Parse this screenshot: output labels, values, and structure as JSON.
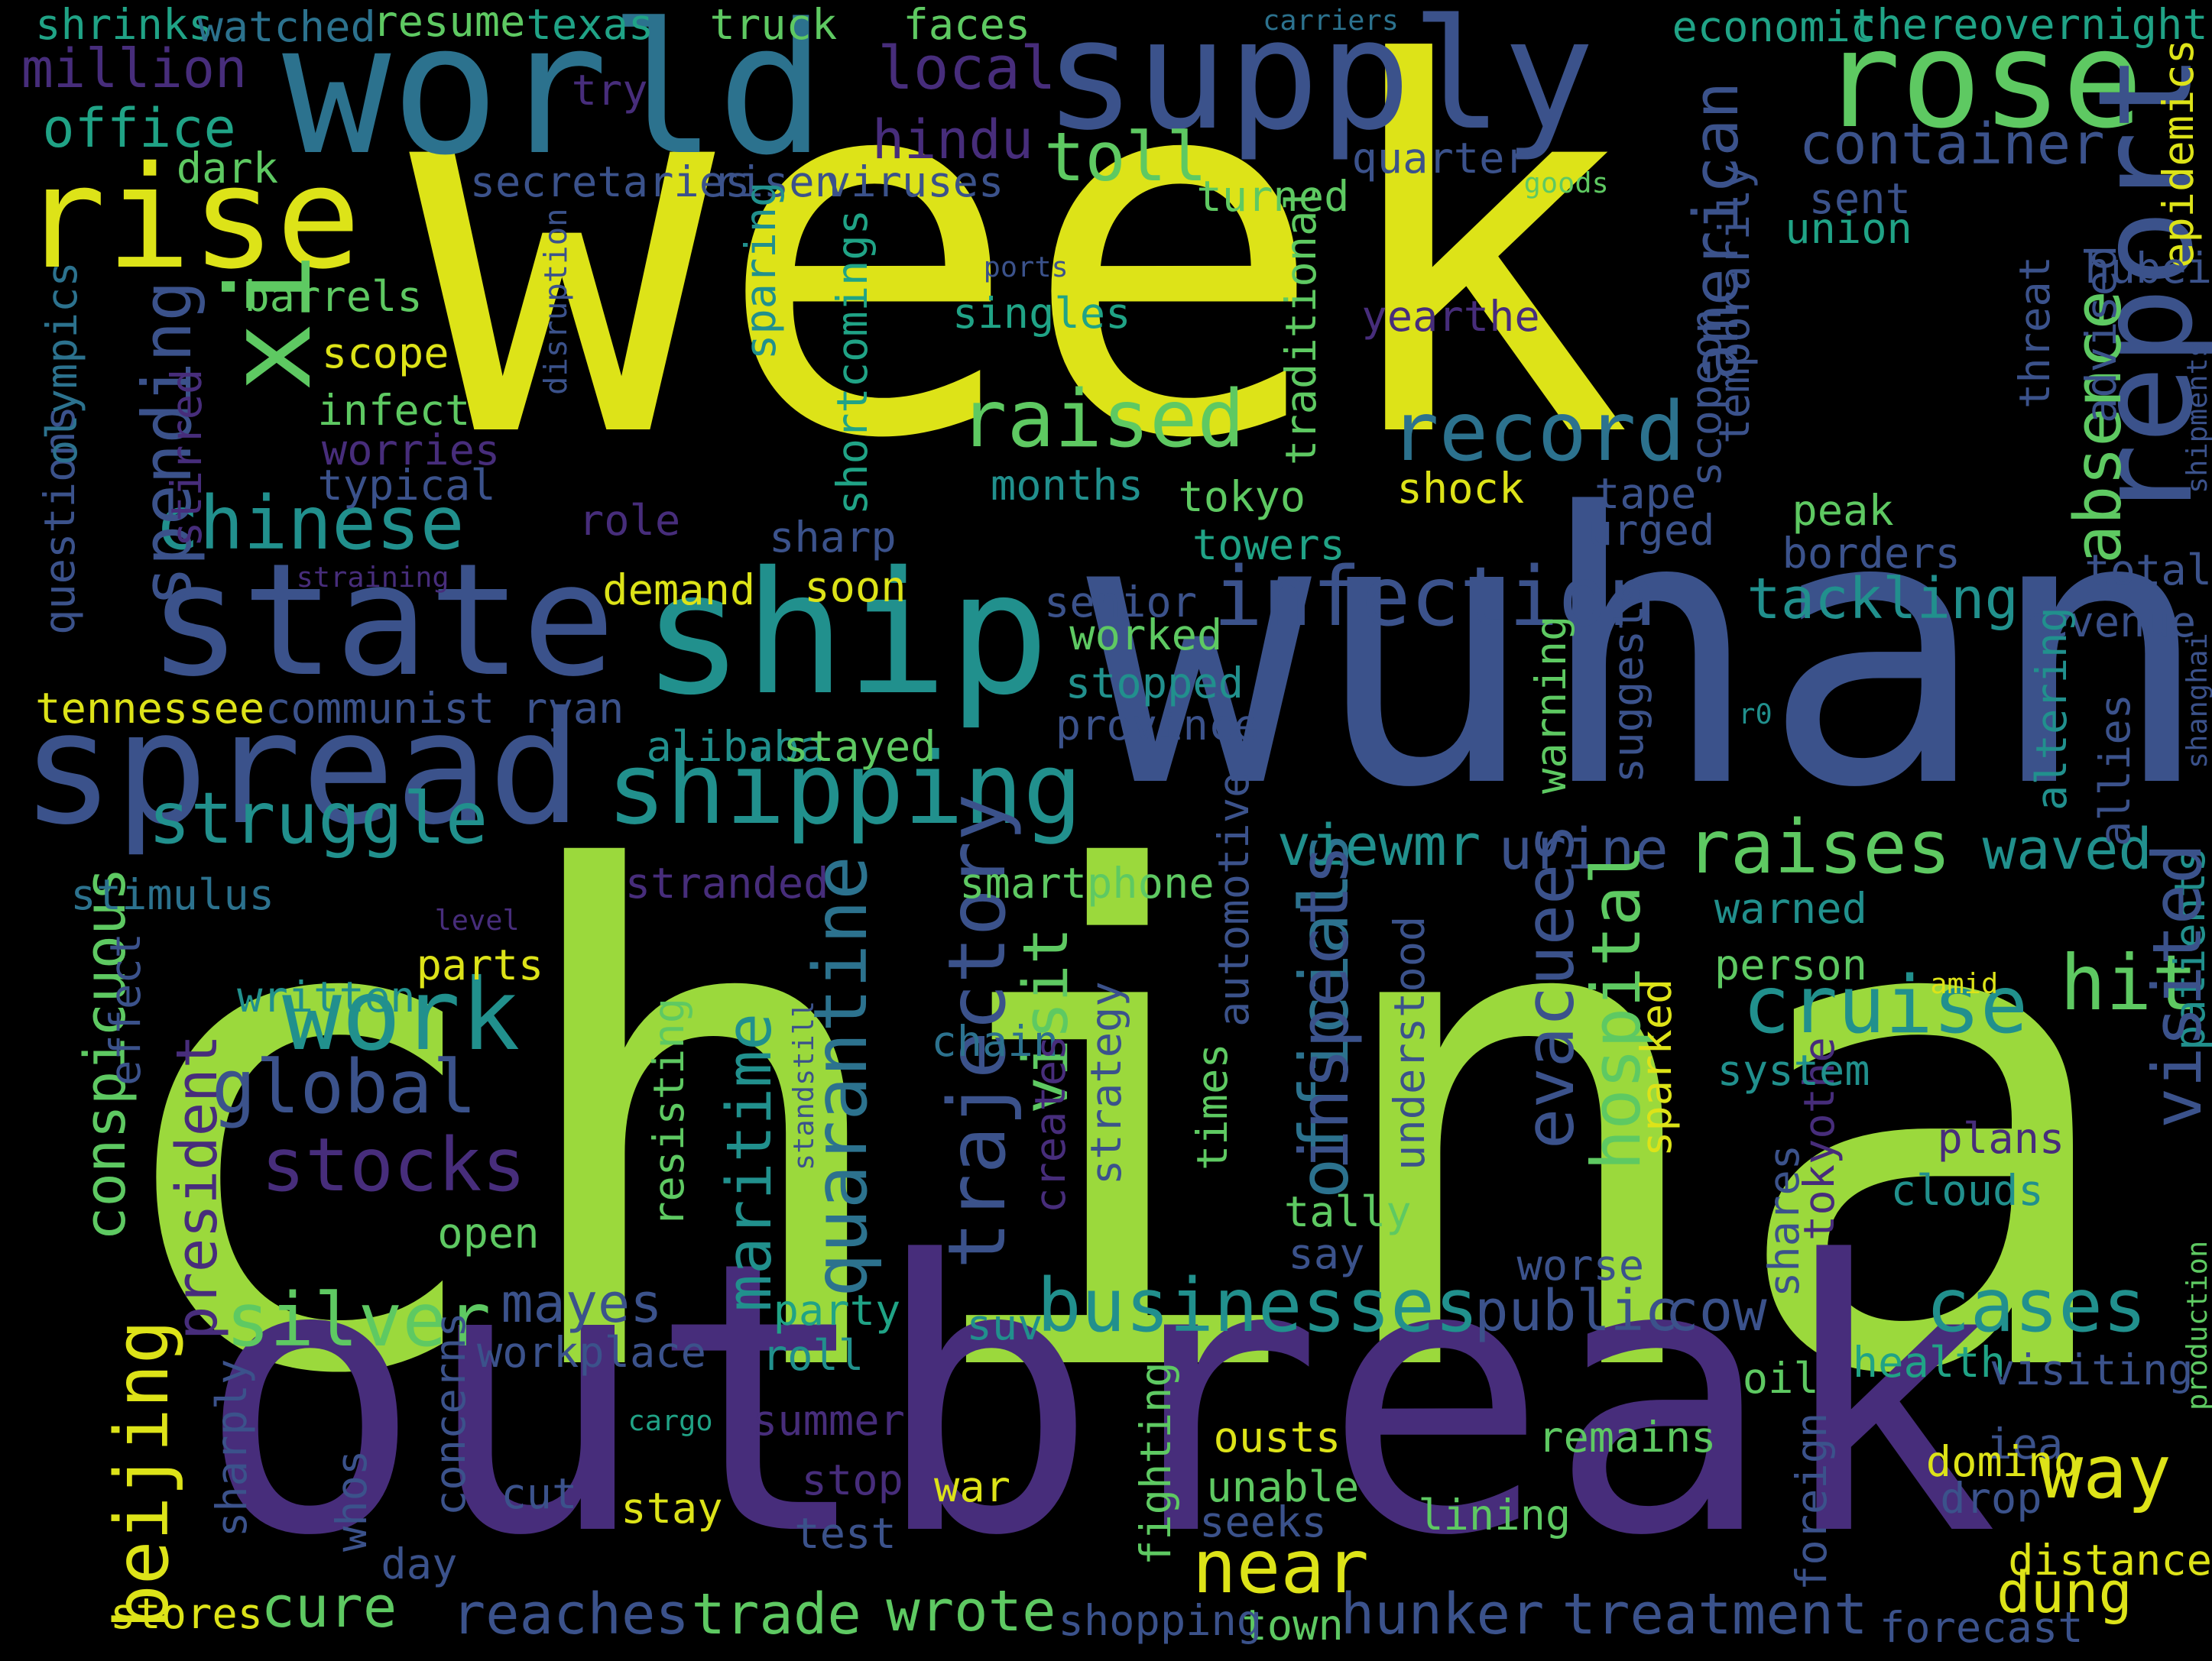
{
  "palette": {
    "yellow": "#dde318",
    "lime": "#9bd93c",
    "green": "#5ec962",
    "teal": "#20a386",
    "cyan": "#21908d",
    "blue": "#2c728e",
    "indigo": "#3b528b",
    "purple": "#472d7b",
    "violet": "#440154"
  },
  "words": [
    "week",
    "china",
    "outbreak",
    "wuhan",
    "world",
    "supply",
    "rose",
    "rise",
    "ship",
    "state",
    "spread",
    "xi",
    "shipping",
    "report",
    "infection",
    "raised",
    "record",
    "chinese",
    "struggle",
    "spending",
    "american",
    "beijing",
    "work",
    "global",
    "stocks",
    "silver",
    "businesses",
    "cruise",
    "trajectory",
    "officials",
    "raises",
    "viewmr",
    "urine",
    "waved",
    "cases",
    "near",
    "hit",
    "way",
    "public",
    "cow",
    "quarantine",
    "maritime",
    "visit",
    "conspicuous",
    "absence",
    "container",
    "toll",
    "office",
    "million",
    "hindu",
    "local",
    "truck",
    "faces",
    "resume",
    "texas",
    "shrinks",
    "watched",
    "carriers",
    "economic",
    "thereovernight",
    "try",
    "quarter",
    "goods",
    "sent",
    "union",
    "epidemics",
    "hubei",
    "dark",
    "secretaries",
    "risen",
    "viruses",
    "turned",
    "ports",
    "temporarily",
    "scopeon",
    "shortcomings",
    "singles",
    "yearthe",
    "traditional",
    "months",
    "tokyo",
    "shock",
    "tape",
    "peak",
    "towers",
    "urged",
    "borders",
    "total",
    "revenue",
    "tackling",
    "senior",
    "worked",
    "stopped",
    "province",
    "demand",
    "soon",
    "sharp",
    "role",
    "straining",
    "tennessee",
    "communist",
    "ryan",
    "alibaba",
    "stayed",
    "barrels",
    "scope",
    "infect",
    "worries",
    "typical",
    "stirred",
    "questions",
    "olympics",
    "disruption",
    "sparing",
    "stranded",
    "smartphone",
    "level",
    "stimulus",
    "parts",
    "written",
    "effect",
    "automotive",
    "chain",
    "strategy",
    "times",
    "understood",
    "inspects",
    "tally",
    "say",
    "evacuees",
    "hospital",
    "sparked",
    "worse",
    "shares",
    "tokyothe",
    "standstill",
    "creates",
    "resisting",
    "plans",
    "clouds",
    "system",
    "person",
    "warned",
    "amid",
    "patients",
    "visited",
    "altering",
    "allies",
    "suggests",
    "warning",
    "threat",
    "advised",
    "shanghai",
    "shipments",
    "president",
    "mayes",
    "workplace",
    "party",
    "roll",
    "suv",
    "cargo",
    "summer",
    "stop",
    "test",
    "war",
    "ousts",
    "unable",
    "seeks",
    "remains",
    "lining",
    "fighting",
    "concerns",
    "cut",
    "stay",
    "day",
    "whos",
    "sharply",
    "health",
    "visiting",
    "oil",
    "iea",
    "domino",
    "drop",
    "foreign",
    "distance",
    "dung",
    "production",
    "forecast",
    "treatment",
    "hunker",
    "town",
    "shopping",
    "wrote",
    "trade",
    "reaches",
    "cure",
    "stores",
    "open",
    "r0"
  ]
}
